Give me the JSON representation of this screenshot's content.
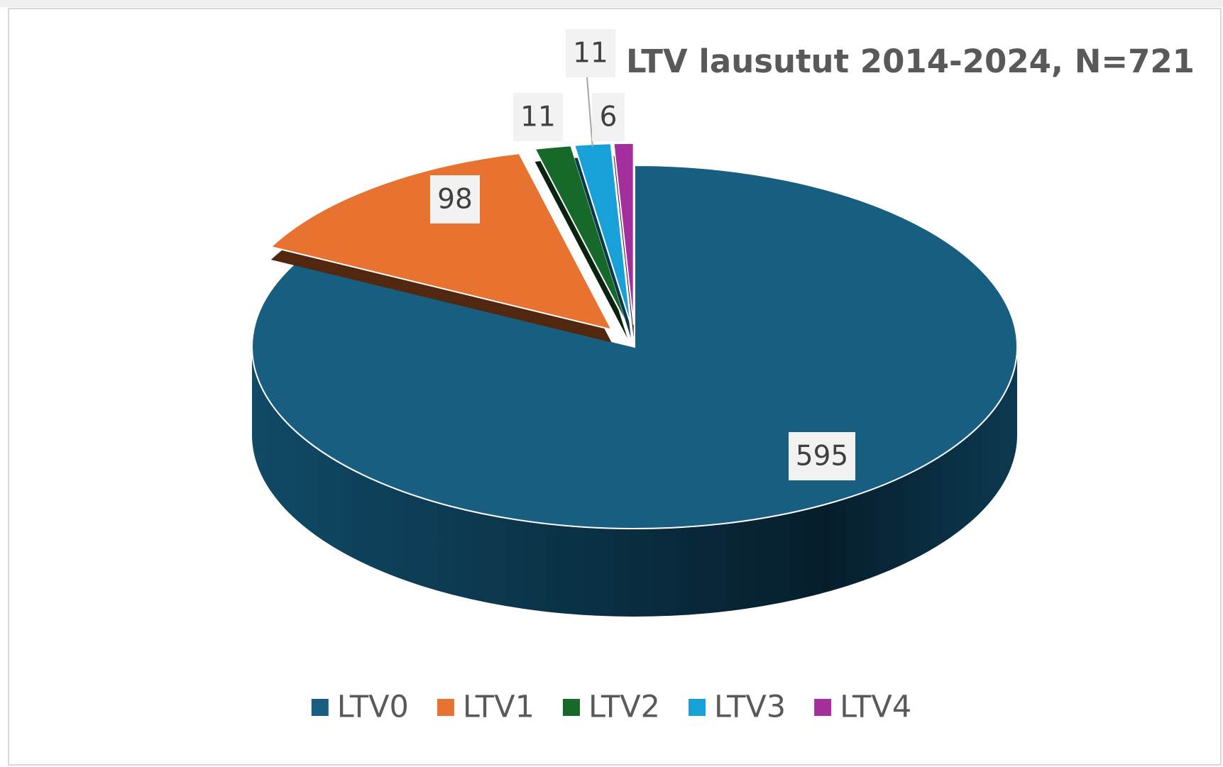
{
  "chart_data": {
    "type": "pie3d",
    "title": "LTV lausutut 2014-2024, N=721",
    "categories": [
      "LTV0",
      "LTV1",
      "LTV2",
      "LTV3",
      "LTV4"
    ],
    "series": [
      {
        "name": "LTV lausutut 2014-2024, N=721",
        "colors": [
          "#185e80",
          "#e87230",
          "#17692a",
          "#18a0d8",
          "#a42f9c"
        ],
        "values": [
          595,
          98,
          11,
          11,
          6
        ]
      }
    ],
    "legend": "bottom"
  }
}
